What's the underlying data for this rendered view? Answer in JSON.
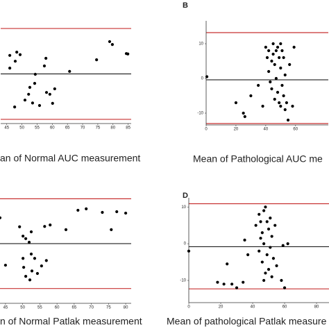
{
  "chart_data": [
    {
      "type": "scatter",
      "x_label": "an of Normal AUC measurement",
      "xlim": [
        43,
        86
      ],
      "ylim": [
        -15,
        15
      ],
      "xticks": [
        45,
        50,
        55,
        60,
        65,
        70,
        75,
        80,
        85
      ],
      "x": [
        48.3,
        46.0,
        49.4,
        47.8,
        57.9,
        57.4,
        46.0,
        54.4,
        65.7,
        74.6,
        78.9,
        79.8,
        84.9,
        84.4,
        54.2,
        52.6,
        52.2,
        51.0,
        47.6,
        53.5,
        55.8,
        58.1,
        59.2,
        60.1,
        60.8
      ],
      "values": [
        6.0,
        5.1,
        5.3,
        3.5,
        4.3,
        2.2,
        1.6,
        -0.1,
        0.7,
        3.9,
        8.9,
        8.1,
        5.5,
        5.6,
        -2.6,
        -3.7,
        -5.6,
        -7.2,
        -9.1,
        -8.0,
        -8.7,
        -5.1,
        -5.6,
        -8.1,
        -4.1
      ],
      "color": "#000000",
      "mean_line": 0,
      "limit_lines": [
        12.5,
        -12.5
      ],
      "limit_color": "#c83232"
    },
    {
      "type": "scatter",
      "panel_label": "B",
      "x_label": "Mean of Pathological AUC me",
      "xlim": [
        0,
        82
      ],
      "ylim": [
        -14.4,
        16.6
      ],
      "xticks": [
        0,
        20,
        40,
        60
      ],
      "yticks": [
        -10,
        0,
        10
      ],
      "x": [
        0.5,
        20,
        25,
        26,
        30,
        35,
        38,
        40,
        41,
        42,
        42,
        43,
        44,
        44,
        45,
        45,
        46,
        46,
        47,
        47,
        48,
        48,
        49,
        49,
        50,
        50,
        50,
        51,
        51,
        52,
        52,
        53,
        53,
        54,
        55,
        58,
        59,
        56
      ],
      "values": [
        0.5,
        -7,
        -10,
        -11,
        -5,
        -2,
        -8,
        9,
        6,
        8,
        2,
        -1,
        5,
        -3,
        7,
        10,
        4,
        -6,
        8,
        0,
        9,
        -4,
        6,
        -7,
        10,
        3,
        -8,
        8,
        -2,
        6,
        -5,
        1,
        -9,
        -7,
        -12,
        -8,
        9,
        4
      ],
      "color": "#000000",
      "mean_line": -0.4,
      "limit_lines": [
        13.2,
        -13
      ],
      "limit_color": "#c83232"
    },
    {
      "type": "scatter",
      "x_label": "n of Normal Patlak measurement",
      "xlim": [
        43.4,
        81.6
      ],
      "ylim": [
        -17.2,
        14.7
      ],
      "xticks": [
        45,
        50,
        55,
        60,
        65,
        70,
        75,
        80
      ],
      "x": [
        43.4,
        49.1,
        50.1,
        50.9,
        51.9,
        52.5,
        56.4,
        58.0,
        62.6,
        66.1,
        68.5,
        73.2,
        75.8,
        77.4,
        80.0,
        45.0,
        52.5,
        53.5,
        50.3,
        52.7,
        54.3,
        55.5,
        56.9,
        50.9,
        52.1,
        50.1
      ],
      "values": [
        7.2,
        4.7,
        2.1,
        1.4,
        0.4,
        3.3,
        4.8,
        5.2,
        3.9,
        9.3,
        9.7,
        8.7,
        3.9,
        8.9,
        8.5,
        -6.0,
        -2.9,
        -4.1,
        -6.6,
        -7.6,
        -8.3,
        -6.2,
        -4.7,
        -9.1,
        -10.1,
        -4.1
      ],
      "color": "#000000",
      "mean_line": 0,
      "limit_lines": [
        12.5,
        -12.5
      ],
      "limit_color": "#c83232"
    },
    {
      "type": "scatter",
      "panel_label": "D",
      "x_label": "Mean of pathological Patlak measure",
      "xlim": [
        0,
        87.8
      ],
      "ylim": [
        -16.8,
        12.5
      ],
      "xticks": [
        0,
        20,
        40,
        60,
        80
      ],
      "yticks": [
        -10,
        0,
        10
      ],
      "x": [
        0,
        18,
        22,
        24,
        27,
        30,
        34,
        35,
        37,
        42,
        44,
        44,
        45,
        46,
        46,
        47,
        47,
        48,
        48,
        49,
        49,
        50,
        50,
        51,
        51,
        52,
        52,
        53,
        54,
        55,
        58,
        60,
        59,
        62,
        47,
        45
      ],
      "values": [
        -2,
        -10.5,
        -11,
        -5.5,
        -11,
        -12,
        -10.5,
        1,
        -3,
        5,
        8,
        -2,
        6,
        3,
        -5,
        9,
        0,
        -8,
        10,
        6,
        -3,
        4,
        -7,
        7,
        -1,
        2,
        -9,
        -4,
        5,
        -6,
        -10,
        -12,
        -0.5,
        0,
        -10,
        1.5
      ],
      "color": "#000000",
      "mean_line": -0.8,
      "limit_lines": [
        10.9,
        -12.3
      ],
      "limit_color": "#c83232"
    }
  ]
}
